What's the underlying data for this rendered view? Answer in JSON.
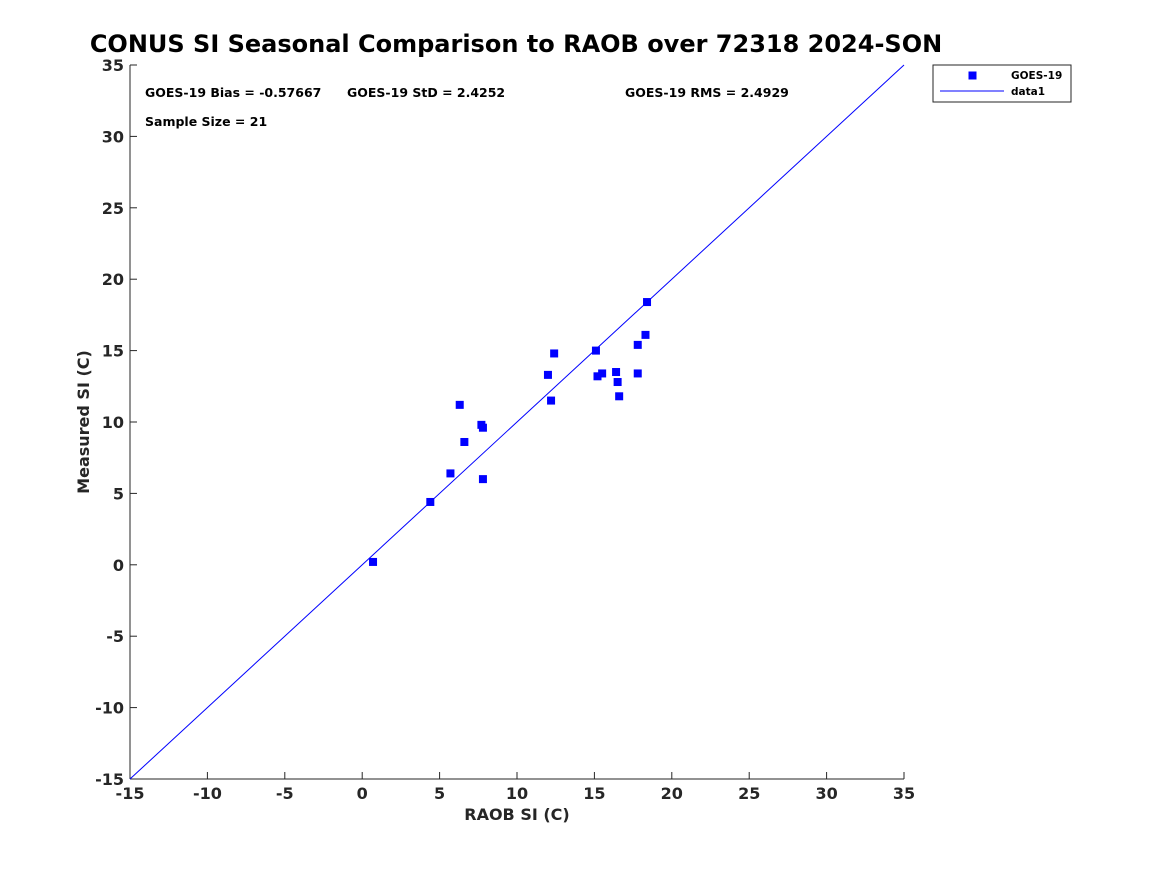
{
  "chart_data": {
    "type": "scatter",
    "title": "CONUS SI Seasonal Comparison to RAOB over 72318 2024-SON",
    "xlabel": "RAOB SI (C)",
    "ylabel": "Measured SI (C)",
    "xlim": [
      -15,
      35
    ],
    "ylim": [
      -15,
      35
    ],
    "xticks": [
      -15,
      -10,
      -5,
      0,
      5,
      10,
      15,
      20,
      25,
      30,
      35
    ],
    "yticks": [
      -15,
      -10,
      -5,
      0,
      5,
      10,
      15,
      20,
      25,
      30,
      35
    ],
    "grid": false,
    "legend_position": "top-right, outside",
    "stats": {
      "bias": "GOES-19 Bias = -0.57667",
      "std": "GOES-19 StD = 2.4252",
      "rms": "GOES-19 RMS = 2.4929",
      "sample": "Sample Size = 21"
    },
    "series": [
      {
        "name": "GOES-19",
        "marker": "square",
        "color": "#0000ff",
        "points": [
          [
            0.7,
            0.2
          ],
          [
            4.4,
            4.4
          ],
          [
            5.7,
            6.4
          ],
          [
            6.3,
            11.2
          ],
          [
            6.6,
            8.6
          ],
          [
            7.7,
            9.8
          ],
          [
            7.8,
            9.6
          ],
          [
            7.8,
            6.0
          ],
          [
            12.0,
            13.3
          ],
          [
            12.2,
            11.5
          ],
          [
            12.4,
            14.8
          ],
          [
            15.1,
            15.0
          ],
          [
            15.2,
            13.2
          ],
          [
            15.5,
            13.4
          ],
          [
            16.4,
            13.5
          ],
          [
            16.5,
            12.8
          ],
          [
            16.6,
            11.8
          ],
          [
            17.8,
            15.4
          ],
          [
            17.8,
            13.4
          ],
          [
            18.3,
            16.1
          ],
          [
            18.4,
            18.4
          ]
        ]
      },
      {
        "name": "data1",
        "type": "line",
        "color": "#0000ff",
        "points": [
          [
            -15,
            -15
          ],
          [
            35,
            35
          ]
        ]
      }
    ]
  }
}
